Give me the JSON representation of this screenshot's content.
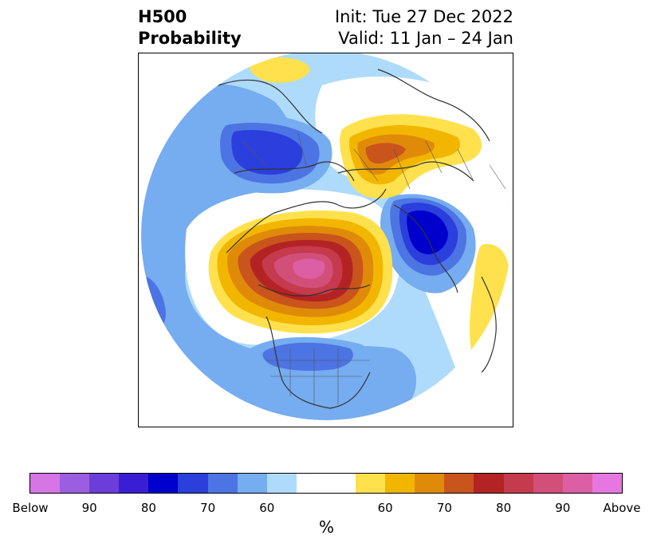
{
  "title": {
    "line1": "H500",
    "line2": "Probability",
    "init": "Init: Tue 27 Dec 2022",
    "valid": "Valid: 11 Jan – 24 Jan"
  },
  "colorbar": {
    "label": "%",
    "colors": [
      "#d774e6",
      "#9c5ee0",
      "#6b3dd9",
      "#3a1ed3",
      "#0000cc",
      "#2a3fdc",
      "#4d74e3",
      "#76acf0",
      "#aedbfb",
      "#ffffff",
      "#ffe14d",
      "#f2b600",
      "#e08a0a",
      "#c9541c",
      "#b42323",
      "#c53a4c",
      "#d24f79",
      "#dc5fa4",
      "#e777e0"
    ],
    "ticks": [
      "Below",
      "90",
      "80",
      "70",
      "60",
      "60",
      "70",
      "80",
      "90",
      "Above"
    ]
  },
  "map": {
    "description_colors": {
      "light_blue": "#aedbfb",
      "mid_blue": "#76acf0",
      "blue": "#4d74e3",
      "dark_blue": "#2a3fdc",
      "navy": "#0000cc",
      "yellow": "#ffe14d",
      "gold": "#f2b600",
      "orange": "#e08a0a",
      "dark_orange": "#c9541c",
      "red": "#b42323",
      "crimson": "#c53a4c",
      "rose": "#d24f79",
      "pink": "#dc5fa4"
    }
  }
}
